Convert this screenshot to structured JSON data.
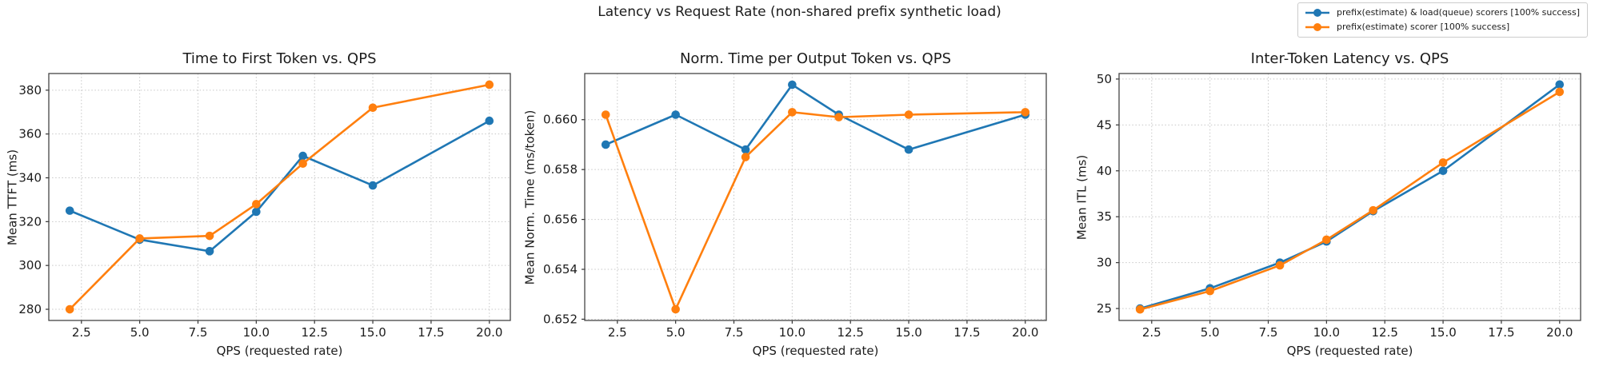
{
  "figure": {
    "title": "Latency vs Request Rate (non-shared prefix synthetic load)"
  },
  "legend": {
    "entries": [
      {
        "label": "prefix(estimate) & load(queue) scorers [100% success]",
        "color": "#1f77b4"
      },
      {
        "label": "prefix(estimate) scorer [100% success]",
        "color": "#ff7f0e"
      }
    ],
    "position": "top-right"
  },
  "style": {
    "series_blue": "#1f77b4",
    "series_orange": "#ff7f0e",
    "grid_color": "#c7c7c7",
    "spine_color": "#454545",
    "tick_color": "#333333",
    "text_color": "#1c1c1c",
    "background": "#ffffff"
  },
  "chart_data": [
    {
      "type": "line",
      "title": "Time to First Token vs. QPS",
      "xlabel": "QPS (requested rate)",
      "ylabel": "Mean TTFT (ms)",
      "x": [
        2,
        5,
        8,
        10,
        12,
        15,
        20
      ],
      "series": [
        {
          "name": "prefix(estimate) & load(queue) scorers [100% success]",
          "color": "#1f77b4",
          "values": [
            325.0,
            311.8,
            306.5,
            324.5,
            350.0,
            336.5,
            366.0
          ]
        },
        {
          "name": "prefix(estimate) scorer [100% success]",
          "color": "#ff7f0e",
          "values": [
            280.0,
            312.3,
            313.5,
            328.0,
            346.5,
            372.0,
            382.5
          ]
        }
      ],
      "xlim": [
        1.1,
        20.9
      ],
      "ylim": [
        274.9,
        387.6
      ],
      "xticks": [
        2.5,
        5.0,
        7.5,
        10.0,
        12.5,
        15.0,
        17.5,
        20.0
      ],
      "yticks": [
        280,
        300,
        320,
        340,
        360,
        380
      ],
      "xtick_decimals": 1,
      "ytick_decimals": 0,
      "grid": true,
      "grid_style": "dotted"
    },
    {
      "type": "line",
      "title": "Norm. Time per Output Token vs. QPS",
      "xlabel": "QPS (requested rate)",
      "ylabel": "Mean Norm. Time (ms/token)",
      "x": [
        2,
        5,
        8,
        10,
        12,
        15,
        20
      ],
      "series": [
        {
          "name": "prefix(estimate) & load(queue) scorers [100% success]",
          "color": "#1f77b4",
          "values": [
            0.659,
            0.6602,
            0.6588,
            0.6614,
            0.6602,
            0.6588,
            0.6602
          ]
        },
        {
          "name": "prefix(estimate) scorer [100% success]",
          "color": "#ff7f0e",
          "values": [
            0.6602,
            0.6524,
            0.6585,
            0.6603,
            0.6601,
            0.6602,
            0.6603
          ]
        }
      ],
      "xlim": [
        1.1,
        20.9
      ],
      "ylim": [
        0.65195,
        0.66185
      ],
      "xticks": [
        2.5,
        5.0,
        7.5,
        10.0,
        12.5,
        15.0,
        17.5,
        20.0
      ],
      "yticks": [
        0.652,
        0.654,
        0.656,
        0.658,
        0.66
      ],
      "xtick_decimals": 1,
      "ytick_decimals": 3,
      "grid": true,
      "grid_style": "dotted"
    },
    {
      "type": "line",
      "title": "Inter-Token Latency vs. QPS",
      "xlabel": "QPS (requested rate)",
      "ylabel": "Mean ITL (ms)",
      "x": [
        2,
        5,
        8,
        10,
        12,
        15,
        20
      ],
      "series": [
        {
          "name": "prefix(estimate) & load(queue) scorers [100% success]",
          "color": "#1f77b4",
          "values": [
            25.0,
            27.2,
            30.0,
            32.3,
            35.6,
            40.0,
            49.4
          ]
        },
        {
          "name": "prefix(estimate) scorer [100% success]",
          "color": "#ff7f0e",
          "values": [
            24.9,
            26.9,
            29.7,
            32.5,
            35.7,
            40.9,
            48.6
          ]
        }
      ],
      "xlim": [
        1.1,
        20.9
      ],
      "ylim": [
        23.7,
        50.6
      ],
      "xticks": [
        2.5,
        5.0,
        7.5,
        10.0,
        12.5,
        15.0,
        17.5,
        20.0
      ],
      "yticks": [
        25,
        30,
        35,
        40,
        45,
        50
      ],
      "xtick_decimals": 1,
      "ytick_decimals": 0,
      "grid": true,
      "grid_style": "dotted"
    }
  ]
}
